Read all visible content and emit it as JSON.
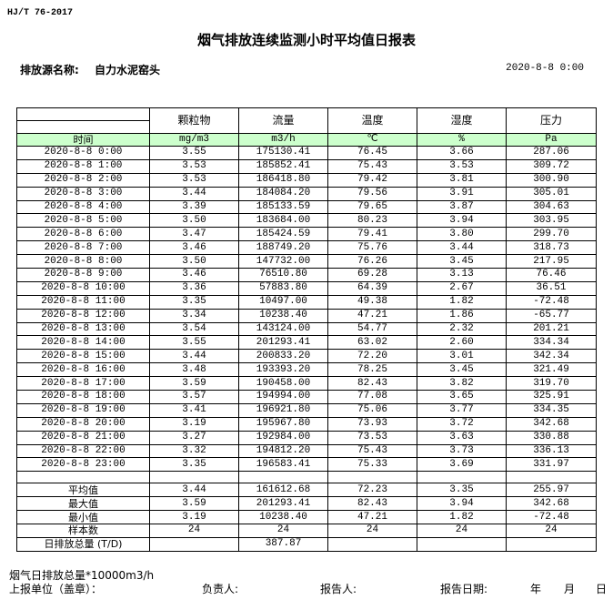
{
  "standard": "HJ/T  76-2017",
  "title": "烟气排放连续监测小时平均值日报表",
  "source_label": "排放源名称:",
  "source_name": "自力水泥窑头",
  "report_datetime": "2020-8-8 0:00",
  "table": {
    "time_header": "时间",
    "columns": [
      {
        "name": "颗粒物",
        "unit": "mg/m3"
      },
      {
        "name": "流量",
        "unit": "m3/h"
      },
      {
        "name": "温度",
        "unit": "℃"
      },
      {
        "name": "湿度",
        "unit": "%"
      },
      {
        "name": "压力",
        "unit": "Pa"
      }
    ],
    "rows": [
      [
        "2020-8-8 0:00",
        "3.55",
        "175130.41",
        "76.45",
        "3.66",
        "287.06"
      ],
      [
        "2020-8-8 1:00",
        "3.53",
        "185852.41",
        "75.43",
        "3.53",
        "309.72"
      ],
      [
        "2020-8-8 2:00",
        "3.53",
        "186418.80",
        "79.42",
        "3.81",
        "300.90"
      ],
      [
        "2020-8-8 3:00",
        "3.44",
        "184084.20",
        "79.56",
        "3.91",
        "305.01"
      ],
      [
        "2020-8-8 4:00",
        "3.39",
        "185133.59",
        "79.65",
        "3.87",
        "304.63"
      ],
      [
        "2020-8-8 5:00",
        "3.50",
        "183684.00",
        "80.23",
        "3.94",
        "303.95"
      ],
      [
        "2020-8-8 6:00",
        "3.47",
        "185424.59",
        "79.41",
        "3.80",
        "299.70"
      ],
      [
        "2020-8-8 7:00",
        "3.46",
        "188749.20",
        "75.76",
        "3.44",
        "318.73"
      ],
      [
        "2020-8-8 8:00",
        "3.50",
        "147732.00",
        "76.26",
        "3.45",
        "217.95"
      ],
      [
        "2020-8-8 9:00",
        "3.46",
        "76510.80",
        "69.28",
        "3.13",
        "76.46"
      ],
      [
        "2020-8-8 10:00",
        "3.36",
        "57883.80",
        "64.39",
        "2.67",
        "36.51"
      ],
      [
        "2020-8-8 11:00",
        "3.35",
        "10497.00",
        "49.38",
        "1.82",
        "-72.48"
      ],
      [
        "2020-8-8 12:00",
        "3.34",
        "10238.40",
        "47.21",
        "1.86",
        "-65.77"
      ],
      [
        "2020-8-8 13:00",
        "3.54",
        "143124.00",
        "54.77",
        "2.32",
        "201.21"
      ],
      [
        "2020-8-8 14:00",
        "3.55",
        "201293.41",
        "63.02",
        "2.60",
        "334.34"
      ],
      [
        "2020-8-8 15:00",
        "3.44",
        "200833.20",
        "72.20",
        "3.01",
        "342.34"
      ],
      [
        "2020-8-8 16:00",
        "3.48",
        "193393.20",
        "78.25",
        "3.45",
        "321.49"
      ],
      [
        "2020-8-8 17:00",
        "3.59",
        "190458.00",
        "82.43",
        "3.82",
        "319.70"
      ],
      [
        "2020-8-8 18:00",
        "3.57",
        "194994.00",
        "77.08",
        "3.65",
        "325.91"
      ],
      [
        "2020-8-8 19:00",
        "3.41",
        "196921.80",
        "75.06",
        "3.77",
        "334.35"
      ],
      [
        "2020-8-8 20:00",
        "3.19",
        "195967.80",
        "73.93",
        "3.72",
        "342.68"
      ],
      [
        "2020-8-8 21:00",
        "3.27",
        "192984.00",
        "73.53",
        "3.63",
        "330.88"
      ],
      [
        "2020-8-8 22:00",
        "3.32",
        "194812.20",
        "75.43",
        "3.73",
        "336.13"
      ],
      [
        "2020-8-8 23:00",
        "3.35",
        "196583.41",
        "75.33",
        "3.69",
        "331.97"
      ]
    ],
    "summary": [
      [
        "平均值",
        "3.44",
        "161612.68",
        "72.23",
        "3.35",
        "255.97"
      ],
      [
        "最大值",
        "3.59",
        "201293.41",
        "82.43",
        "3.94",
        "342.68"
      ],
      [
        "最小值",
        "3.19",
        "10238.40",
        "47.21",
        "1.82",
        "-72.48"
      ],
      [
        "样本数",
        "24",
        "24",
        "24",
        "24",
        "24"
      ],
      [
        "日排放总量 (T/D)",
        "",
        "387.87",
        "",
        "",
        ""
      ]
    ]
  },
  "footer": {
    "note": "烟气日排放总量*10000m3/h",
    "unit_label": "上报单位（盖章）：",
    "responsible_label": "负责人:",
    "reporter_label": "报告人:",
    "date_label": "报告日期:",
    "year": "年",
    "month": "月",
    "day": "日"
  }
}
